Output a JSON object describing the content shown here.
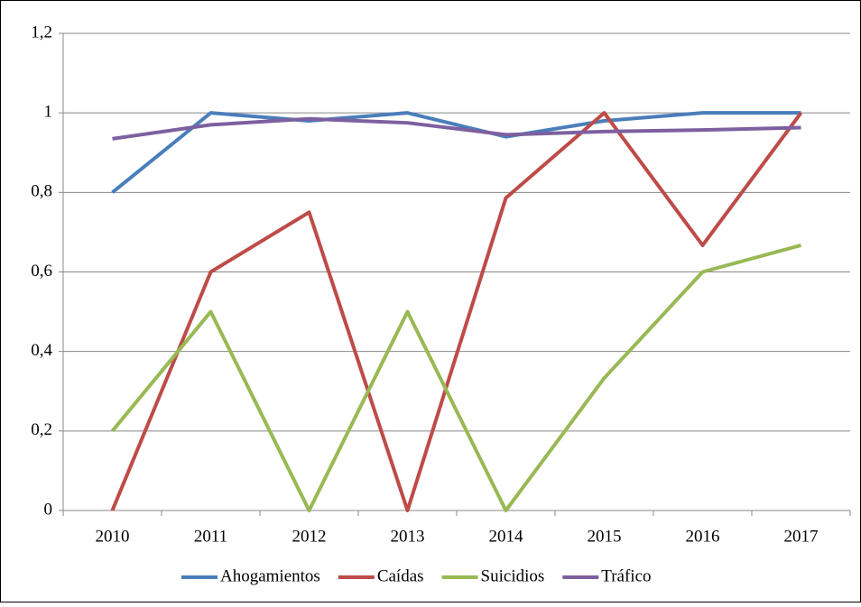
{
  "chart_data": {
    "type": "line",
    "categories": [
      "2010",
      "2011",
      "2012",
      "2013",
      "2014",
      "2015",
      "2016",
      "2017"
    ],
    "series": [
      {
        "name": "Ahogamientos",
        "color": "#4a7ebb",
        "values": [
          0.8,
          1,
          0.98,
          1,
          0.94,
          0.98,
          1,
          1
        ]
      },
      {
        "name": "Caídas",
        "color": "#be4b48",
        "values": [
          0,
          0.6,
          0.75,
          0,
          0.786,
          1,
          0.667,
          1
        ]
      },
      {
        "name": "Suicidios",
        "color": "#98b954",
        "values": [
          0.2,
          0.5,
          0,
          0.5,
          0,
          0.333,
          0.6,
          0.667
        ]
      },
      {
        "name": "Tráfico",
        "color": "#7d60a0",
        "values": [
          0.935,
          0.97,
          0.985,
          0.975,
          0.945,
          0.953,
          0.957,
          0.963
        ]
      }
    ],
    "ylim": [
      0,
      1.2
    ],
    "yticks": [
      0,
      {
        "value": 0.2,
        "label": "0,2"
      },
      {
        "value": 0.4,
        "label": "0,4"
      },
      {
        "value": 0.6,
        "label": "0,6"
      },
      {
        "value": 0.8,
        "label": "0,8"
      },
      1,
      {
        "value": 1.2,
        "label": "1,2"
      }
    ],
    "grid": true,
    "legend": "bottom"
  }
}
